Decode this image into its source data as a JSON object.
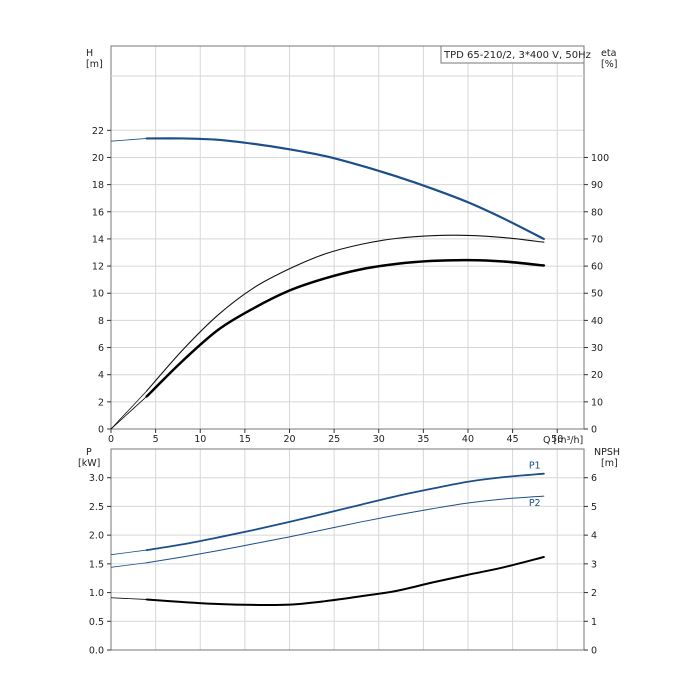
{
  "chart_data": [
    {
      "type": "line",
      "title": "TPD 65-210/2, 3*400 V, 50Hz",
      "xlabel": "Q [m³/h]",
      "ylabel": "H\n[m]",
      "ylabel_right": "eta\n[%]",
      "xlim": [
        0,
        53
      ],
      "ylim": [
        0,
        26
      ],
      "ylim_right": [
        0,
        130
      ],
      "x_ticks": [
        "0",
        "5",
        "10",
        "15",
        "20",
        "25",
        "30",
        "35",
        "40",
        "45",
        "50"
      ],
      "y_ticks": [
        "0",
        "2",
        "4",
        "6",
        "8",
        "10",
        "12",
        "14",
        "16",
        "18",
        "20",
        "22"
      ],
      "y_ticks_right": [
        "0",
        "10",
        "20",
        "30",
        "40",
        "50",
        "60",
        "70",
        "80",
        "90",
        "100"
      ],
      "grid": true,
      "series": [
        {
          "axis": "left",
          "color": "#1b4f8a",
          "width": 2.2,
          "x": [
            0,
            4,
            8,
            12,
            16,
            20,
            24,
            28,
            32,
            36,
            40,
            44,
            48.5
          ],
          "y": [
            21.2,
            21.4,
            21.4,
            21.3,
            21.0,
            20.6,
            20.1,
            19.4,
            18.6,
            17.7,
            16.7,
            15.5,
            14.0
          ]
        },
        {
          "axis": "right",
          "color": "#111111",
          "width": 1.1,
          "x": [
            0,
            4,
            8,
            12,
            16,
            20,
            24,
            28,
            32,
            36,
            40,
            44,
            48.5
          ],
          "y": [
            0,
            14,
            29,
            42,
            52,
            59,
            64.5,
            68,
            70.2,
            71.2,
            71.3,
            70.5,
            68.8
          ]
        },
        {
          "axis": "right",
          "color": "#000000",
          "width": 2.5,
          "x": [
            0,
            4,
            8,
            12,
            16,
            20,
            24,
            28,
            32,
            36,
            40,
            44,
            48.5
          ],
          "y": [
            0,
            12,
            25,
            36.5,
            44.5,
            51,
            55.5,
            58.8,
            60.8,
            61.9,
            62.2,
            61.7,
            60.2
          ]
        }
      ]
    },
    {
      "type": "line",
      "ylabel": "P\n[kW]",
      "ylabel_right": "NPSH\n[m]",
      "xlim": [
        0,
        53
      ],
      "ylim": [
        0,
        3.5
      ],
      "ylim_right": [
        0,
        7
      ],
      "y_ticks": [
        "0.0",
        "0.5",
        "1.0",
        "1.5",
        "2.0",
        "2.5",
        "3.0"
      ],
      "y_ticks_right": [
        "0",
        "1",
        "2",
        "3",
        "4",
        "5",
        "6"
      ],
      "grid": true,
      "series": [
        {
          "name": "P1",
          "axis": "left",
          "color": "#1b4f8a",
          "width": 1.8,
          "x": [
            0,
            4,
            8,
            12,
            16,
            20,
            24,
            28,
            32,
            36,
            40,
            44,
            48.5
          ],
          "y": [
            1.66,
            1.74,
            1.84,
            1.96,
            2.09,
            2.23,
            2.38,
            2.53,
            2.68,
            2.81,
            2.93,
            3.01,
            3.07
          ]
        },
        {
          "name": "P2",
          "axis": "left",
          "color": "#1b4f8a",
          "width": 1.0,
          "x": [
            0,
            4,
            8,
            12,
            16,
            20,
            24,
            28,
            32,
            36,
            40,
            44,
            48.5
          ],
          "y": [
            1.44,
            1.52,
            1.62,
            1.73,
            1.85,
            1.97,
            2.1,
            2.23,
            2.35,
            2.46,
            2.56,
            2.63,
            2.68
          ]
        },
        {
          "axis": "right",
          "color": "#000000",
          "width": 2.0,
          "x": [
            0,
            4,
            8,
            12,
            16,
            20,
            24,
            28,
            32,
            36,
            40,
            44,
            48.5
          ],
          "y": [
            1.82,
            1.76,
            1.67,
            1.6,
            1.57,
            1.58,
            1.7,
            1.87,
            2.06,
            2.35,
            2.62,
            2.88,
            3.24
          ]
        }
      ]
    }
  ]
}
